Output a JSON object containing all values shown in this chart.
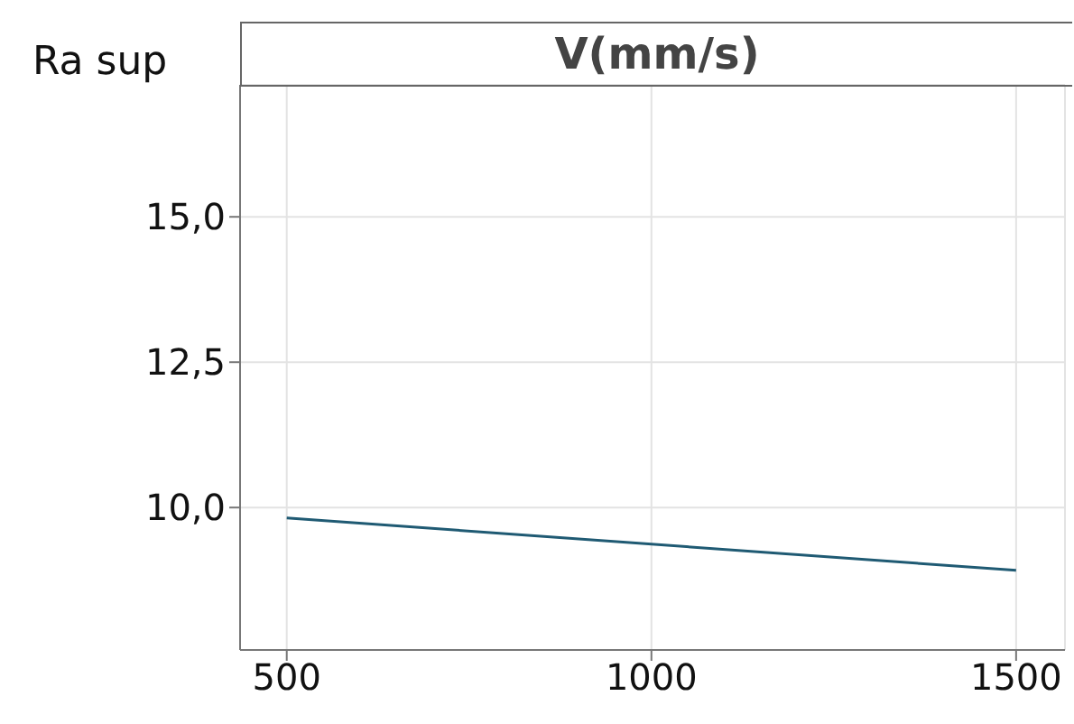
{
  "chart_data": {
    "type": "line",
    "title": "V(mm/s)",
    "ylabel": "Ra sup",
    "x": [
      500,
      1500
    ],
    "series": [
      {
        "color": "#1f5a73",
        "values": [
          9.82,
          8.92
        ]
      }
    ],
    "xlim": [
      436,
      1567
    ],
    "xticks": [
      500,
      1000,
      1500
    ],
    "ylim": [
      7.55,
      17.27
    ],
    "yticks": [
      {
        "value": 10,
        "label": "10,0"
      },
      {
        "value": 12.5,
        "label": "12,5"
      },
      {
        "value": 15,
        "label": "15,0"
      }
    ],
    "grid": true,
    "marker": "none",
    "line_style": "solid"
  }
}
